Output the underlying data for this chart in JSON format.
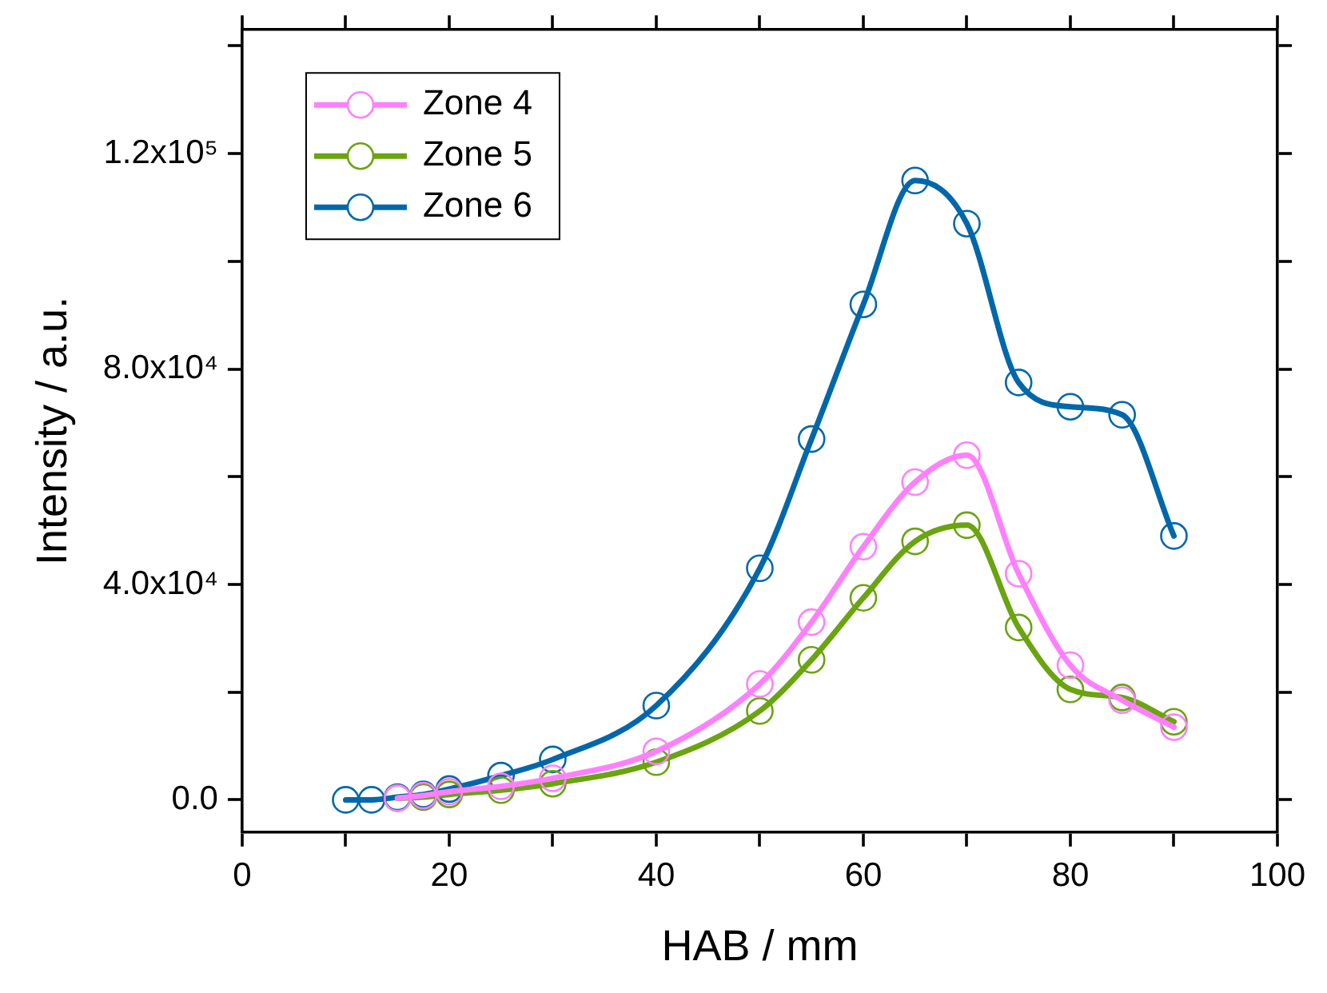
{
  "chart_data": {
    "type": "line",
    "xlabel": "HAB / mm",
    "ylabel": "Intensity / a.u.",
    "xlim": [
      0,
      100
    ],
    "xticks": [
      0,
      {
        "value": 10,
        "label": null
      },
      20,
      {
        "value": 30,
        "label": null
      },
      40,
      {
        "value": 50,
        "label": null
      },
      60,
      {
        "value": 70,
        "label": null
      },
      80,
      {
        "value": 90,
        "label": null
      },
      100
    ],
    "ylim": [
      -6000,
      143000
    ],
    "yticks": [
      {
        "value": 0,
        "label": "0.0"
      },
      {
        "value": 20000,
        "label": null
      },
      {
        "value": 40000,
        "label": "4.0x10⁴"
      },
      {
        "value": 60000,
        "label": null
      },
      {
        "value": 80000,
        "label": "8.0x10⁴"
      },
      {
        "value": 100000,
        "label": null
      },
      {
        "value": 120000,
        "label": "1.2x10⁵"
      },
      {
        "value": 140000,
        "label": null
      }
    ],
    "grid": false,
    "legend": "top left",
    "marker": "circle",
    "line_style": "solid",
    "series": [
      {
        "name": "Zone 4",
        "color": "#ff80ff",
        "x": [
          15,
          17.5,
          20,
          25,
          30,
          40,
          50,
          55,
          60,
          65,
          70,
          75,
          80,
          85,
          90
        ],
        "values": [
          300,
          800,
          1500,
          2500,
          4000,
          9000,
          21500,
          33000,
          47000,
          59000,
          64000,
          42000,
          25000,
          18500,
          13500
        ]
      },
      {
        "name": "Zone 5",
        "color": "#6aa40f",
        "x": [
          15,
          17.5,
          20,
          25,
          30,
          40,
          50,
          55,
          60,
          65,
          70,
          75,
          80,
          85,
          90
        ],
        "values": [
          300,
          500,
          1000,
          1800,
          3000,
          7000,
          16500,
          26000,
          37500,
          48000,
          51000,
          32000,
          20500,
          19000,
          14500
        ]
      },
      {
        "name": "Zone 6",
        "color": "#0068aa",
        "x": [
          10,
          12.5,
          15,
          17.5,
          20,
          25,
          30,
          40,
          50,
          55,
          60,
          65,
          70,
          75,
          80,
          85,
          90
        ],
        "values": [
          0,
          0,
          500,
          1000,
          2000,
          4500,
          7500,
          17500,
          43000,
          67000,
          92000,
          115000,
          107000,
          77500,
          73000,
          71500,
          49000
        ]
      }
    ]
  }
}
